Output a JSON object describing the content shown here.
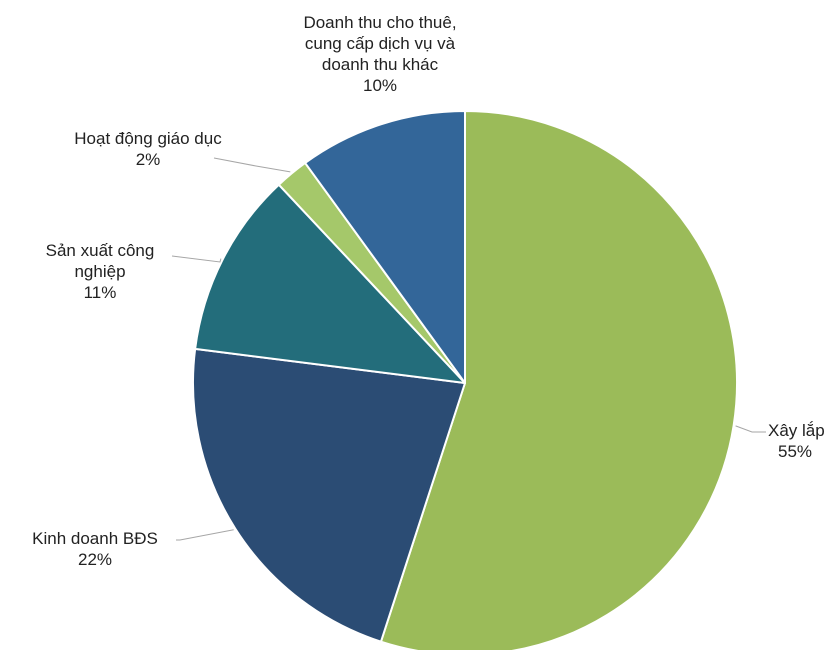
{
  "chart_data": {
    "type": "pie",
    "start_angle_deg": 0,
    "direction": "clockwise",
    "slices": [
      {
        "label_lines": [
          "Xây lắp"
        ],
        "value": 55,
        "value_label": "55%",
        "color": "#9BBB59"
      },
      {
        "label_lines": [
          "Kinh doanh BĐS"
        ],
        "value": 22,
        "value_label": "22%",
        "color": "#2B4C74"
      },
      {
        "label_lines": [
          "Sản xuất công",
          "nghiệp"
        ],
        "value": 11,
        "value_label": "11%",
        "color": "#236D7B"
      },
      {
        "label_lines": [
          "Hoạt động giáo dục"
        ],
        "value": 2,
        "value_label": "2%",
        "color": "#A5C86A"
      },
      {
        "label_lines": [
          "Doanh thu cho thuê,",
          "cung cấp dịch vụ và",
          "doanh thu khác"
        ],
        "value": 10,
        "value_label": "10%",
        "color": "#336699"
      }
    ],
    "slice_border_color": "#FFFFFF",
    "leader_line_color": "#A6A6A6",
    "label_color": "#222222"
  }
}
